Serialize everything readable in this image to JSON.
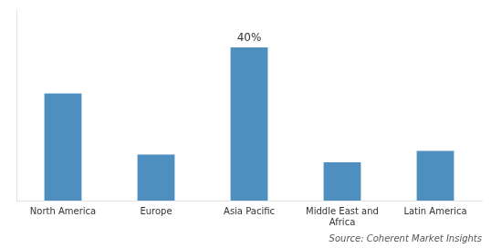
{
  "chart_data": {
    "type": "bar",
    "categories": [
      "North America",
      "Europe",
      "Asia Pacific",
      "Middle East and\nAfrica",
      "Latin America"
    ],
    "values": [
      28,
      12,
      40,
      10,
      13
    ],
    "color": "#4f8fbf",
    "ylim": [
      0,
      50
    ],
    "yticks": [],
    "grid": false,
    "tick_labels": "x",
    "annotations": [
      {
        "text": "40%",
        "category": "Asia Pacific",
        "value": 40
      }
    ],
    "caption": "Source: Coherent Market Insights"
  }
}
